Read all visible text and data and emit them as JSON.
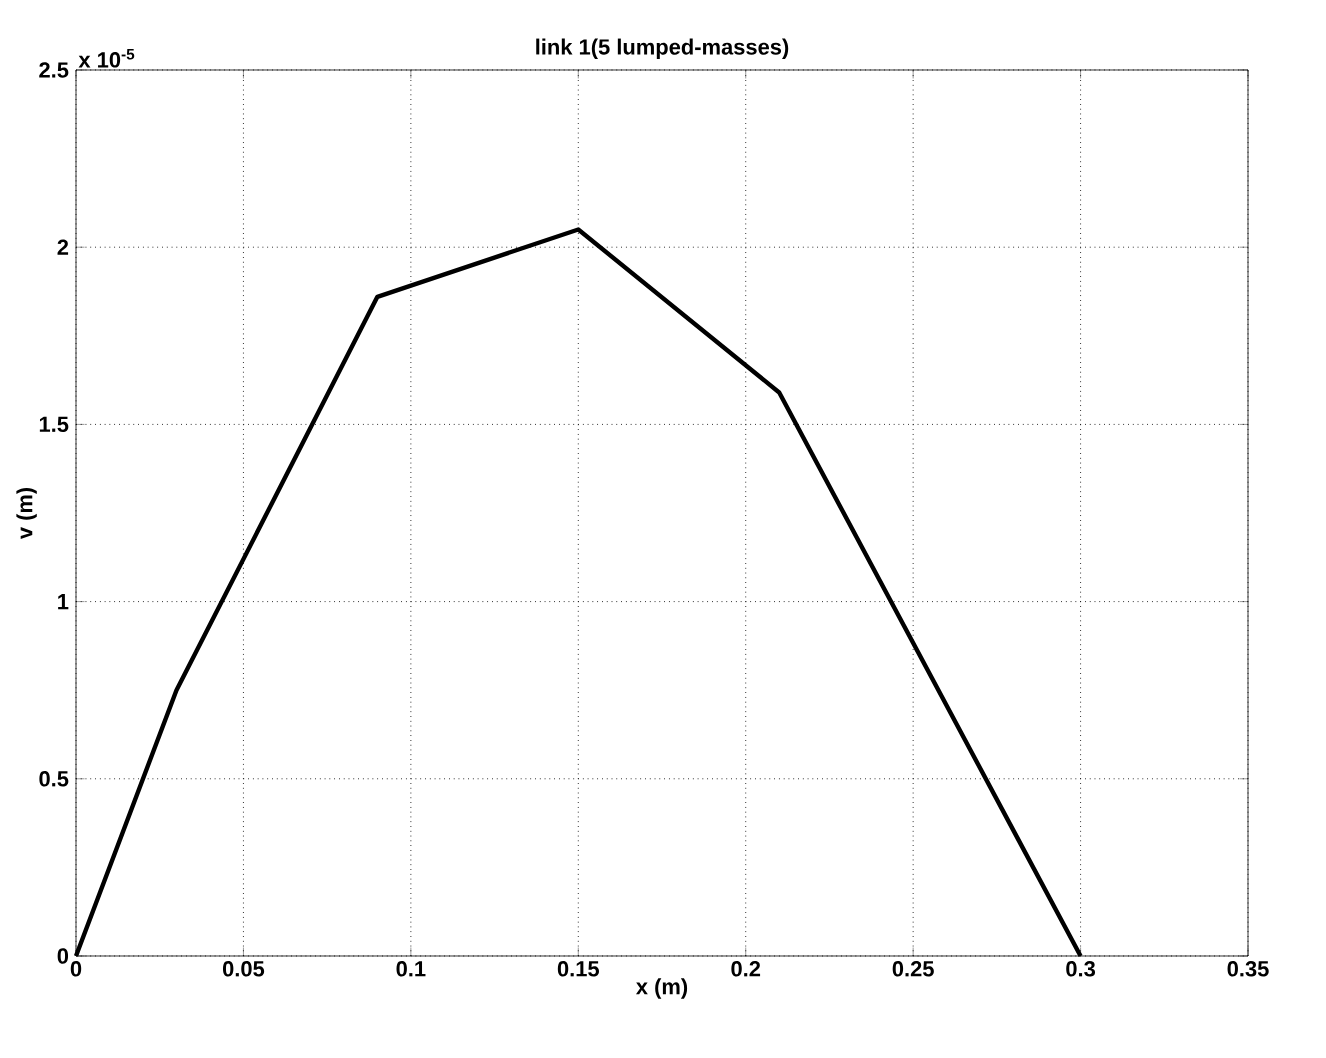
{
  "chart_data": {
    "type": "line",
    "title": "link 1(5 lumped-masses)",
    "xlabel": "x (m)",
    "ylabel": "v (m)",
    "annotations": [
      "x 10$^{-5}$"
    ],
    "x": [
      0,
      0.03,
      0.09,
      0.15,
      0.21,
      0.3
    ],
    "series": [
      {
        "color": "#000000",
        "values": [
          0,
          0.75,
          1.86,
          2.05,
          1.59,
          0
        ]
      }
    ],
    "xlim": [
      0,
      0.35
    ],
    "xticks": [
      0,
      0.05,
      0.1,
      0.15,
      0.2,
      0.25,
      0.3,
      0.35
    ],
    "ylim": [
      0,
      2.5
    ],
    "yticks": [
      0,
      0.5,
      1,
      1.5,
      2,
      2.5
    ],
    "grid": true,
    "line_style": "solid"
  }
}
